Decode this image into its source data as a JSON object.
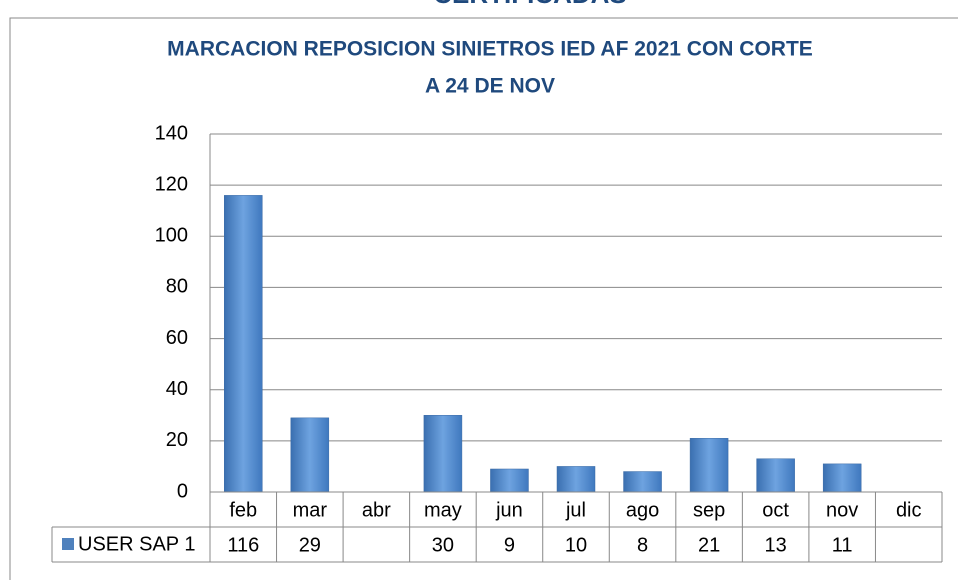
{
  "chart_data": {
    "type": "bar",
    "page_heading": "CERTIFICADAS",
    "title_lines": [
      "MARCACION REPOSICION SINIETROS IED AF 2021 CON CORTE",
      "A 24 DE NOV"
    ],
    "categories": [
      "feb",
      "mar",
      "abr",
      "may",
      "jun",
      "jul",
      "ago",
      "sep",
      "oct",
      "nov",
      "dic"
    ],
    "series": [
      {
        "name": "USER SAP 1",
        "color": "#4f81bd",
        "values": [
          116,
          29,
          null,
          30,
          9,
          10,
          8,
          21,
          13,
          11,
          null
        ]
      }
    ],
    "ylim": [
      0,
      140
    ],
    "yticks": [
      0,
      20,
      40,
      60,
      80,
      100,
      120,
      140
    ],
    "grid": true,
    "data_table": true
  }
}
